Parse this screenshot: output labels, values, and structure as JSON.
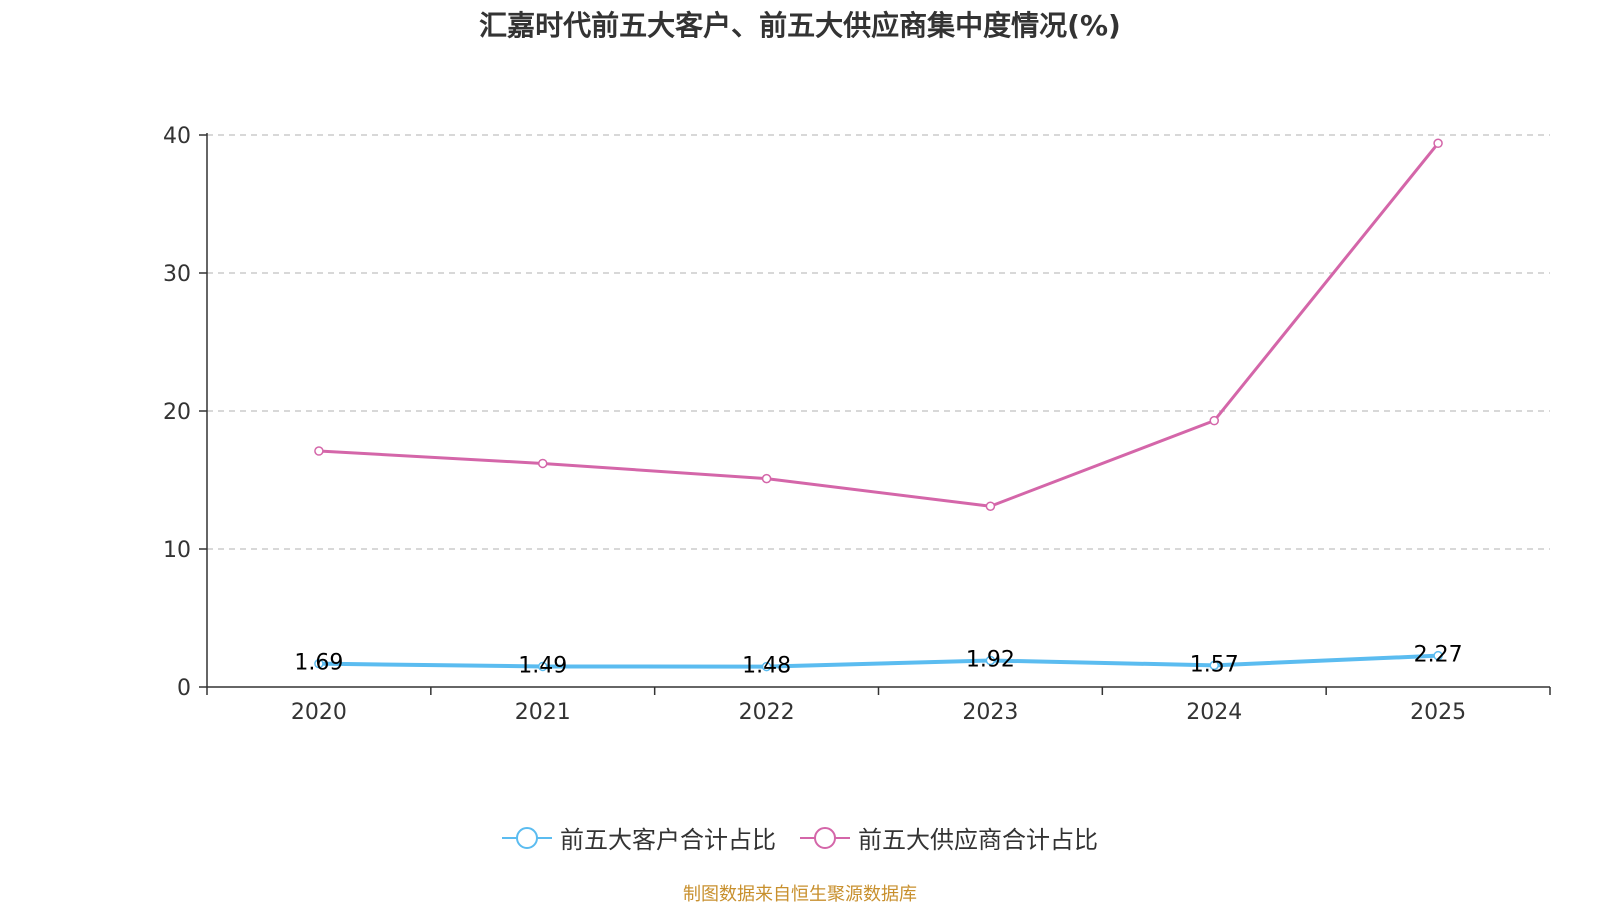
{
  "chart_data": {
    "type": "line",
    "title": "汇嘉时代前五大客户、前五大供应商集中度情况(%)",
    "categories": [
      "2020",
      "2021",
      "2022",
      "2023",
      "2024",
      "2025"
    ],
    "series": [
      {
        "name": "前五大客户合计占比",
        "color": "#5bbcf0",
        "values": [
          1.69,
          1.49,
          1.48,
          1.92,
          1.57,
          2.27
        ],
        "show_labels": true
      },
      {
        "name": "前五大供应商合计占比",
        "color": "#d466a9",
        "values": [
          17.1,
          16.2,
          15.1,
          13.1,
          19.3,
          39.4
        ],
        "show_labels": false
      }
    ],
    "ylim": [
      0,
      40
    ],
    "yticks": [
      0,
      10,
      20,
      30,
      40
    ],
    "grid": true,
    "legend_position": "bottom"
  },
  "source": "制图数据来自恒生聚源数据库"
}
